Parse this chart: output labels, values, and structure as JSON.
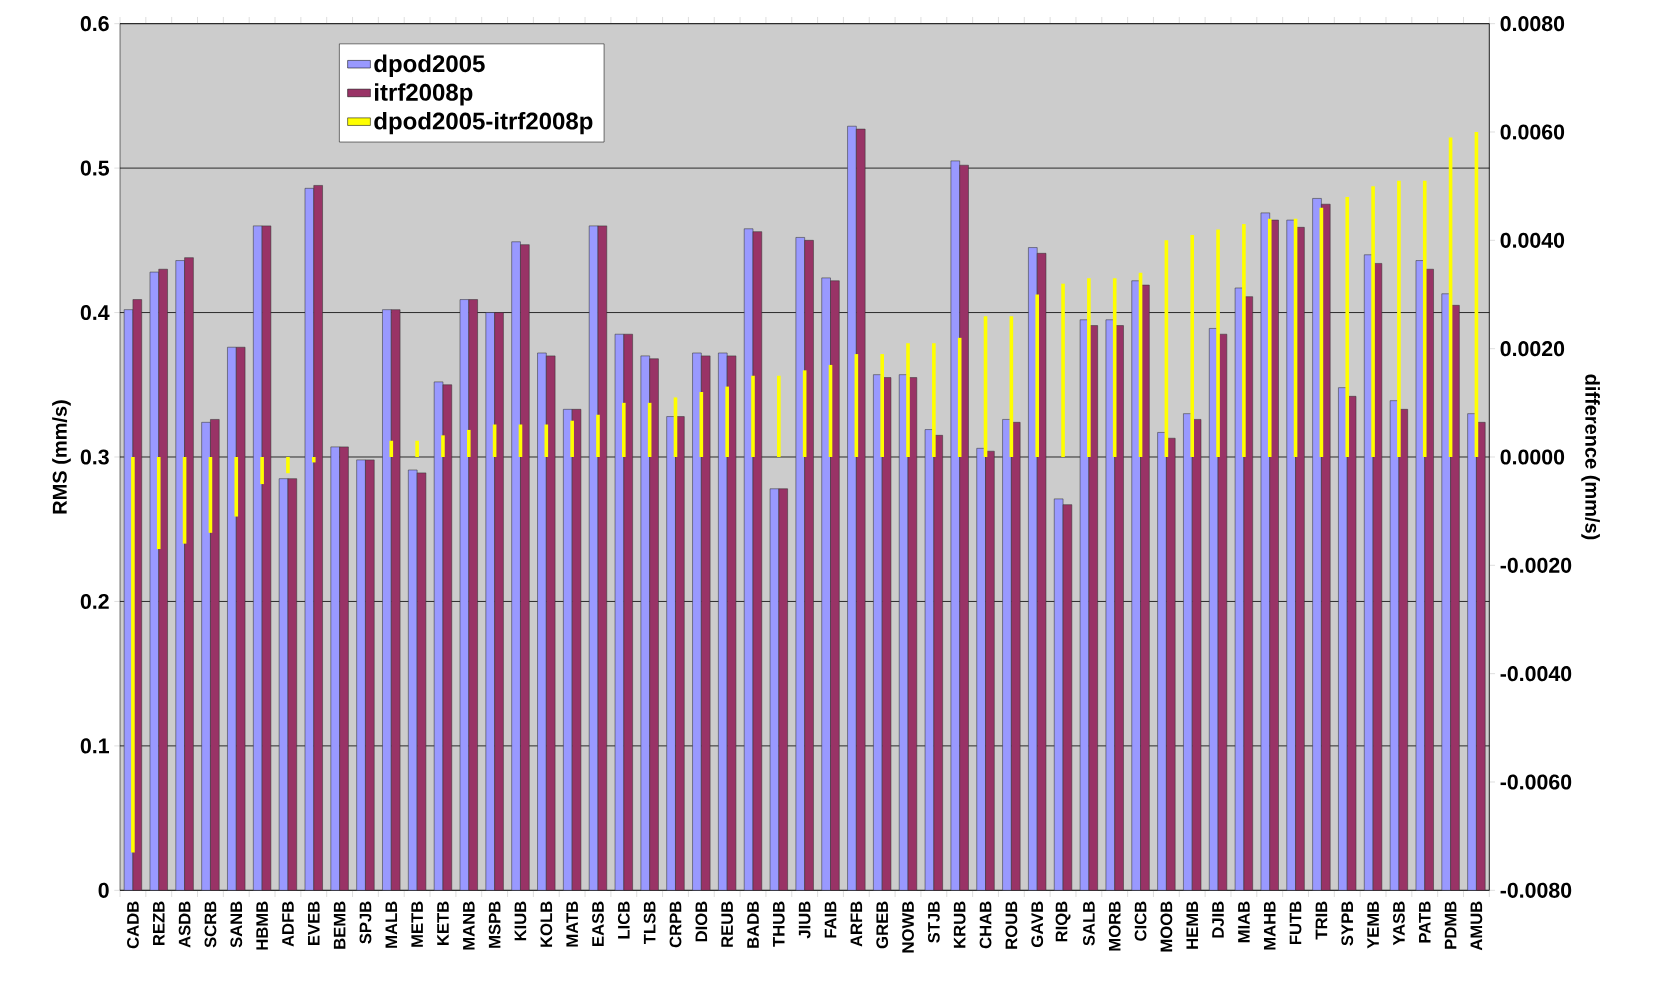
{
  "chart_data": {
    "type": "bar",
    "ylabel": "RMS  (mm/s)",
    "y2label": "difference  (mm/s)",
    "categories": [
      "CADB",
      "REZB",
      "ASDB",
      "SCRB",
      "SANB",
      "HBMB",
      "ADFB",
      "EVEB",
      "BEMB",
      "SPJB",
      "MALB",
      "METB",
      "KETB",
      "MANB",
      "MSPB",
      "KIUB",
      "KOLB",
      "MATB",
      "EASB",
      "LICB",
      "TLSB",
      "CRPB",
      "DIOB",
      "REUB",
      "BADB",
      "THUB",
      "JIUB",
      "FAIB",
      "ARFB",
      "GREB",
      "NOWB",
      "STJB",
      "KRUB",
      "CHAB",
      "ROUB",
      "GAVB",
      "RIQB",
      "SALB",
      "MORB",
      "CICB",
      "MOOB",
      "HEMB",
      "DJIB",
      "MIAB",
      "MAHB",
      "FUTB",
      "TRIB",
      "SYPB",
      "YEMB",
      "YASB",
      "PATB",
      "PDMB",
      "AMUB"
    ],
    "series": [
      {
        "name": "dpod2005",
        "color": "#9999ff",
        "values": [
          0.402,
          0.428,
          0.436,
          0.324,
          0.376,
          0.46,
          0.285,
          0.486,
          0.307,
          0.298,
          0.402,
          0.291,
          0.352,
          0.409,
          0.4,
          0.449,
          0.372,
          0.333,
          0.46,
          0.385,
          0.37,
          0.328,
          0.372,
          0.372,
          0.458,
          0.278,
          0.452,
          0.424,
          0.529,
          0.357,
          0.357,
          0.319,
          0.505,
          0.306,
          0.326,
          0.445,
          0.271,
          0.395,
          0.395,
          0.422,
          0.317,
          0.33,
          0.389,
          0.417,
          0.469,
          0.464,
          0.479,
          0.348,
          0.44,
          0.339,
          0.436,
          0.413,
          0.33
        ]
      },
      {
        "name": "itrf2008p",
        "color": "#993366",
        "values": [
          0.409,
          0.43,
          0.438,
          0.326,
          0.376,
          0.46,
          0.285,
          0.488,
          0.307,
          0.298,
          0.402,
          0.289,
          0.35,
          0.409,
          0.4,
          0.447,
          0.37,
          0.333,
          0.46,
          0.385,
          0.368,
          0.328,
          0.37,
          0.37,
          0.456,
          0.278,
          0.45,
          0.422,
          0.527,
          0.355,
          0.355,
          0.315,
          0.502,
          0.304,
          0.324,
          0.441,
          0.267,
          0.391,
          0.391,
          0.419,
          0.313,
          0.326,
          0.385,
          0.411,
          0.464,
          0.459,
          0.475,
          0.342,
          0.434,
          0.333,
          0.43,
          0.405,
          0.324
        ]
      },
      {
        "name": "dpod2005-itrf2008p",
        "color": "#ffff00",
        "axis": "y2",
        "values": [
          -0.0073,
          -0.0017,
          -0.0016,
          -0.0014,
          -0.0011,
          -0.0005,
          -0.0003,
          -0.0001,
          0,
          0,
          0.0003,
          0.0003,
          0.0004,
          0.0005,
          0.0006,
          0.0006,
          0.0006,
          0.00067,
          0.00078,
          0.001,
          0.001,
          0.0011,
          0.0012,
          0.0013,
          0.0015,
          0.0015,
          0.0016,
          0.0017,
          0.0019,
          0.0019,
          0.0021,
          0.0021,
          0.0022,
          0.0026,
          0.0026,
          0.003,
          0.0032,
          0.0033,
          0.0033,
          0.0034,
          0.004,
          0.0041,
          0.0042,
          0.0043,
          0.0044,
          0.0044,
          0.0046,
          0.0048,
          0.005,
          0.0051,
          0.0051,
          0.0059,
          0.006
        ]
      }
    ],
    "ylim": [
      0,
      0.6
    ],
    "yticks": [
      0,
      0.1,
      0.2,
      0.3,
      0.4,
      0.5,
      0.6
    ],
    "y2lim": [
      -0.008,
      0.008
    ],
    "y2ticks": [
      {
        "value": -0.008,
        "label": "-0.0080"
      },
      {
        "value": -0.006,
        "label": "-0.0060"
      },
      {
        "value": -0.004,
        "label": "-0.0040"
      },
      {
        "value": -0.002,
        "label": "-0.0020"
      },
      {
        "value": 0,
        "label": "0.0000"
      },
      {
        "value": 0.002,
        "label": "0.0020"
      },
      {
        "value": 0.004,
        "label": "0.0040"
      },
      {
        "value": 0.006,
        "label": "0.0060"
      },
      {
        "value": 0.008,
        "label": "0.0080"
      }
    ],
    "grid": "y",
    "legend": "top left"
  }
}
